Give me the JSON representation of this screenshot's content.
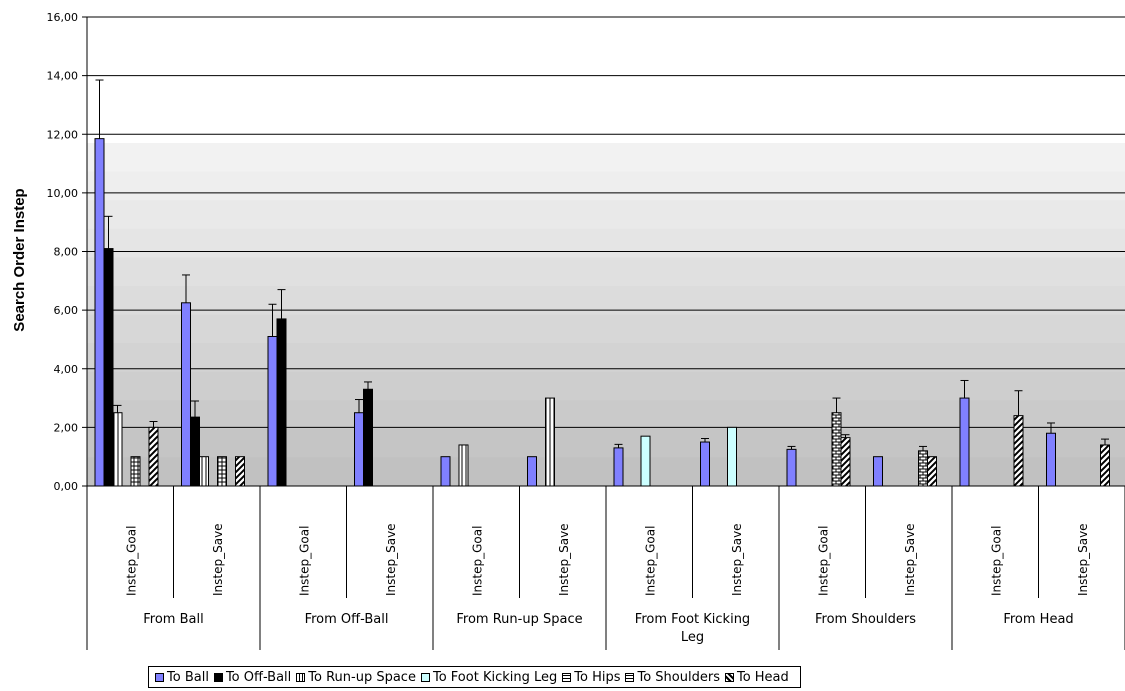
{
  "chart_data": {
    "type": "bar",
    "ylabel": "Search Order Instep",
    "ylim": [
      0,
      16
    ],
    "yticks": [
      "0,00",
      "2,00",
      "4,00",
      "6,00",
      "8,00",
      "10,00",
      "12,00",
      "14,00",
      "16,00"
    ],
    "grid": true,
    "legend_position": "bottom",
    "groups": [
      {
        "label": "From Ball",
        "subcategories": [
          "Instep_Goal",
          "Instep_Save"
        ]
      },
      {
        "label": "From Off-Ball",
        "subcategories": [
          "Instep_Goal",
          "Instep_Save"
        ]
      },
      {
        "label": "From Run-up Space",
        "subcategories": [
          "Instep_Goal",
          "Instep_Save"
        ]
      },
      {
        "label": "From Foot Kicking Leg",
        "subcategories": [
          "Instep_Goal",
          "Instep_Save"
        ]
      },
      {
        "label": "From Shoulders",
        "subcategories": [
          "Instep_Goal",
          "Instep_Save"
        ]
      },
      {
        "label": "From Head",
        "subcategories": [
          "Instep_Goal",
          "Instep_Save"
        ]
      }
    ],
    "series": [
      {
        "name": "To Ball",
        "color": "#8080ff",
        "pattern": "solid",
        "values": [
          11.85,
          6.25,
          5.1,
          2.5,
          1.0,
          1.0,
          1.3,
          1.5,
          1.25,
          1.0,
          3.0,
          1.8
        ],
        "errors": [
          2.0,
          0.95,
          1.1,
          0.45,
          0,
          0,
          0.12,
          0.12,
          0.1,
          0,
          0.6,
          0.35
        ]
      },
      {
        "name": "To Off-Ball",
        "color": "#000000",
        "pattern": "solid",
        "values": [
          8.1,
          2.35,
          5.7,
          3.3,
          null,
          null,
          null,
          null,
          null,
          null,
          null,
          null
        ],
        "errors": [
          1.1,
          0.55,
          1.0,
          0.25,
          0,
          0,
          0,
          0,
          0,
          0,
          0,
          0
        ]
      },
      {
        "name": "To Run-up Space",
        "color": "#ffffff",
        "pattern": "vlines",
        "values": [
          2.5,
          1.0,
          null,
          null,
          1.4,
          3.0,
          null,
          null,
          null,
          null,
          null,
          null
        ],
        "errors": [
          0.25,
          0,
          0,
          0,
          0,
          0,
          0,
          0,
          0,
          0,
          0,
          0
        ]
      },
      {
        "name": "To Foot Kicking Leg",
        "color": "#ccffff",
        "pattern": "solid",
        "values": [
          null,
          null,
          null,
          null,
          null,
          null,
          1.7,
          2.0,
          null,
          null,
          null,
          null
        ],
        "errors": [
          0,
          0,
          0,
          0,
          0,
          0,
          0,
          0,
          0,
          0,
          0,
          0
        ]
      },
      {
        "name": "To Hips",
        "color": "#ffffff",
        "pattern": "hgrid",
        "values": [
          1.0,
          1.0,
          null,
          null,
          null,
          null,
          null,
          null,
          null,
          null,
          null,
          null
        ],
        "errors": [
          0,
          0,
          0,
          0,
          0,
          0,
          0,
          0,
          0,
          0,
          0,
          0
        ]
      },
      {
        "name": "To Shoulders",
        "color": "#ffffff",
        "pattern": "brick",
        "values": [
          null,
          null,
          null,
          null,
          null,
          null,
          null,
          null,
          2.5,
          1.2,
          null,
          null
        ],
        "errors": [
          0,
          0,
          0,
          0,
          0,
          0,
          0,
          0,
          0.5,
          0.15,
          0,
          0
        ]
      },
      {
        "name": "To Head",
        "color": "#ffffff",
        "pattern": "diag",
        "values": [
          2.0,
          1.0,
          null,
          null,
          null,
          null,
          null,
          null,
          1.65,
          1.0,
          2.4,
          1.4
        ],
        "errors": [
          0.2,
          0,
          0,
          0,
          0,
          0,
          0,
          0,
          0.1,
          0,
          0.85,
          0.2
        ]
      }
    ]
  }
}
